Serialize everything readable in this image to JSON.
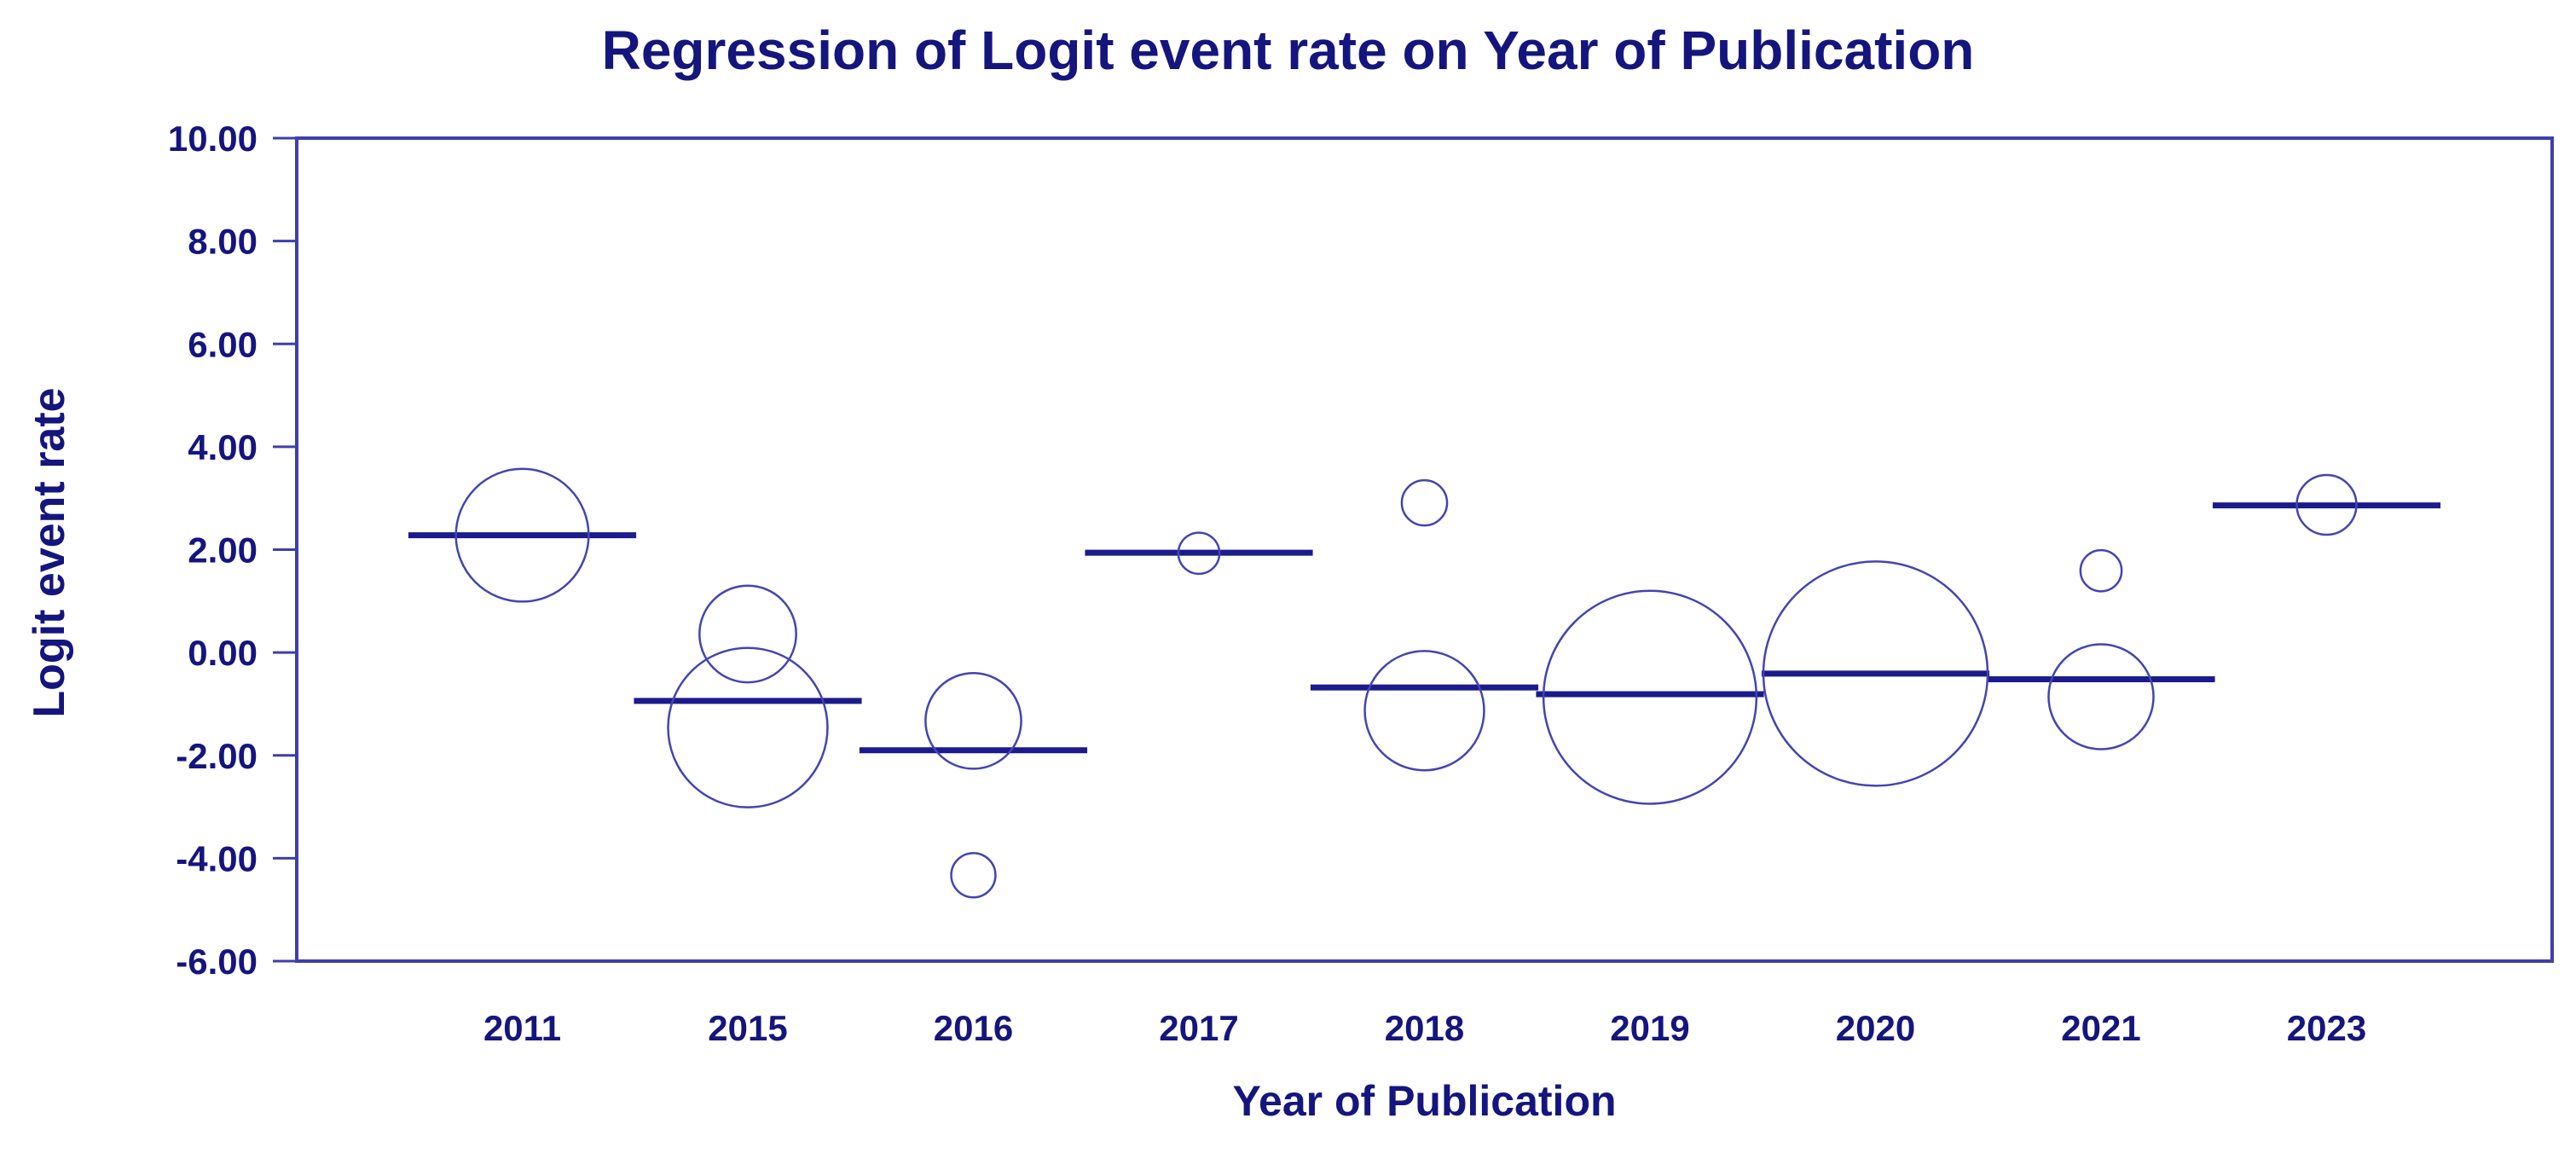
{
  "title": "Regression of Logit event rate on Year of Publication",
  "y_axis": {
    "label": "Logit event rate",
    "tick_labels": [
      "10.00",
      "8.00",
      "6.00",
      "4.00",
      "2.00",
      "0.00",
      "-2.00",
      "-4.00",
      "-6.00"
    ],
    "tick_values": [
      10,
      8,
      6,
      4,
      2,
      0,
      -2,
      -4,
      -6
    ]
  },
  "x_axis": {
    "label": "Year of Publication",
    "categories": [
      "2011",
      "2015",
      "2016",
      "2017",
      "2018",
      "2019",
      "2020",
      "2021",
      "2023"
    ]
  },
  "colors": {
    "text": "#15157e",
    "frame": "#3e3eae",
    "fit_line": "#1b1b8e",
    "bubble_stroke": "#4444b2",
    "background": "#ffffff"
  },
  "chart_data": {
    "type": "bubble",
    "title": "Regression of Logit event rate on Year of Publication",
    "xlabel": "Year of Publication",
    "ylabel": "Logit event rate",
    "ylim": [
      -6,
      10
    ],
    "y_tick_step": 2,
    "grid": "off",
    "legend": "none",
    "categories": [
      "2011",
      "2015",
      "2016",
      "2017",
      "2018",
      "2019",
      "2020",
      "2021",
      "2023"
    ],
    "regression_line_by_year": [
      2.28,
      -0.94,
      -1.9,
      1.94,
      -0.68,
      -0.81,
      -0.41,
      -0.52,
      2.86
    ],
    "line_half_width_slots": 0.505,
    "bubbles": [
      {
        "year": "2011",
        "logit_event_rate": 2.28,
        "radius": 1.29
      },
      {
        "year": "2015",
        "logit_event_rate": 0.36,
        "radius": 0.94
      },
      {
        "year": "2015",
        "logit_event_rate": -1.46,
        "radius": 1.55
      },
      {
        "year": "2016",
        "logit_event_rate": -1.33,
        "radius": 0.93
      },
      {
        "year": "2016",
        "logit_event_rate": -4.33,
        "radius": 0.43
      },
      {
        "year": "2017",
        "logit_event_rate": 1.93,
        "radius": 0.4
      },
      {
        "year": "2018",
        "logit_event_rate": 2.91,
        "radius": 0.44
      },
      {
        "year": "2018",
        "logit_event_rate": -1.13,
        "radius": 1.16
      },
      {
        "year": "2019",
        "logit_event_rate": -0.87,
        "radius": 2.07
      },
      {
        "year": "2020",
        "logit_event_rate": -0.41,
        "radius": 2.18
      },
      {
        "year": "2021",
        "logit_event_rate": 1.59,
        "radius": 0.4
      },
      {
        "year": "2021",
        "logit_event_rate": -0.86,
        "radius": 1.02
      },
      {
        "year": "2023",
        "logit_event_rate": 2.87,
        "radius": 0.58
      }
    ]
  }
}
